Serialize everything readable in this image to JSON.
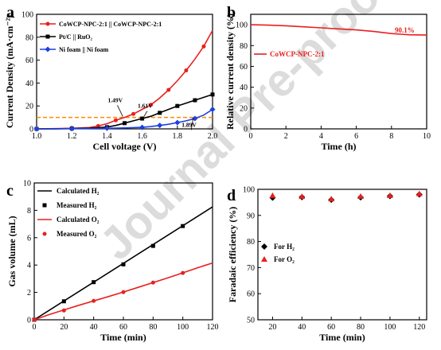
{
  "figure": {
    "watermark": "Journal Pre-proofs",
    "colors": {
      "red": "#e8201e",
      "black": "#000000",
      "blue": "#1f3fe0",
      "orange": "#ff8c00"
    }
  },
  "chart_data": [
    {
      "panel": "a",
      "type": "line",
      "xlabel": "Cell voltage (V)",
      "ylabel": "Current Density (mA·cm⁻²)",
      "xlim": [
        1.0,
        2.0
      ],
      "ylim": [
        0,
        100
      ],
      "xticks": [
        "1.0",
        "1.2",
        "1.4",
        "1.6",
        "1.8",
        "2.0"
      ],
      "yticks": [
        "0",
        "20",
        "40",
        "60",
        "80",
        "100"
      ],
      "series": [
        {
          "name": "CoWCP-NPC-2:1 || CoWCP-NPC-2:1",
          "color": "#e8201e",
          "marker": "circle",
          "x": [
            1.0,
            1.1,
            1.2,
            1.3,
            1.35,
            1.4,
            1.45,
            1.5,
            1.55,
            1.6,
            1.65,
            1.7,
            1.75,
            1.8,
            1.85,
            1.9,
            1.95,
            2.0
          ],
          "y": [
            0,
            0.2,
            0.5,
            1.2,
            2.5,
            4.5,
            7.5,
            10,
            13,
            17,
            21,
            27,
            34,
            42,
            51,
            61,
            72,
            86
          ]
        },
        {
          "name": "Pt/C || RuO₂",
          "color": "#000000",
          "marker": "square",
          "x": [
            1.0,
            1.1,
            1.2,
            1.3,
            1.4,
            1.45,
            1.5,
            1.55,
            1.6,
            1.65,
            1.7,
            1.75,
            1.8,
            1.85,
            1.9,
            1.95,
            2.0
          ],
          "y": [
            0,
            0.1,
            0.3,
            0.6,
            1.5,
            3,
            5,
            7,
            9,
            11,
            14,
            17,
            20,
            22.5,
            25,
            27.5,
            30
          ]
        },
        {
          "name": "Ni foam || Ni foam",
          "color": "#1f3fe0",
          "marker": "diamond",
          "x": [
            1.0,
            1.1,
            1.2,
            1.3,
            1.4,
            1.5,
            1.6,
            1.65,
            1.7,
            1.75,
            1.8,
            1.85,
            1.9,
            1.95,
            2.0
          ],
          "y": [
            0,
            0.1,
            0.2,
            0.3,
            0.5,
            0.8,
            1.3,
            2,
            3,
            4,
            5.5,
            7,
            9,
            12,
            17
          ]
        }
      ],
      "reference_line": {
        "y": 10,
        "color": "#ff8c00",
        "style": "dashed"
      },
      "annotations": [
        "1.49V",
        "1.61V",
        "1.89V"
      ]
    },
    {
      "panel": "b",
      "type": "line",
      "xlabel": "Time (h)",
      "ylabel": "Relative current density (%)",
      "xlim": [
        0,
        10
      ],
      "ylim": [
        0,
        110
      ],
      "xticks": [
        "0",
        "2",
        "4",
        "6",
        "8",
        "10"
      ],
      "yticks": [
        "0",
        "20",
        "40",
        "60",
        "80",
        "100"
      ],
      "series": [
        {
          "name": "CoWCP-NPC-2:1",
          "color": "#e8201e",
          "x": [
            0,
            1,
            2,
            3,
            4,
            5,
            6,
            7,
            8,
            9,
            10
          ],
          "y": [
            100,
            99.6,
            99,
            98,
            97,
            96,
            95,
            93.5,
            91.5,
            90.4,
            90.1
          ]
        }
      ],
      "annotations": [
        "90.1%"
      ]
    },
    {
      "panel": "c",
      "type": "line",
      "xlabel": "Time (min)",
      "ylabel": "Gas volume (mL)",
      "xlim": [
        0,
        120
      ],
      "ylim": [
        0,
        10
      ],
      "xticks": [
        "0",
        "20",
        "40",
        "60",
        "80",
        "100",
        "120"
      ],
      "yticks": [
        "0",
        "2",
        "4",
        "6",
        "8",
        "10"
      ],
      "series": [
        {
          "name": "Calculated H₂",
          "color": "#000000",
          "kind": "line",
          "x": [
            0,
            120
          ],
          "y": [
            0,
            8.25
          ]
        },
        {
          "name": "Measured H₂",
          "color": "#000000",
          "kind": "square",
          "x": [
            0,
            20,
            40,
            60,
            80,
            100
          ],
          "y": [
            0,
            1.35,
            2.75,
            4.05,
            5.4,
            6.85
          ]
        },
        {
          "name": "Calculated O₂",
          "color": "#e8201e",
          "kind": "line",
          "x": [
            0,
            10,
            20,
            30,
            40,
            50,
            60,
            70,
            80,
            90,
            100,
            110,
            120
          ],
          "y": [
            0,
            0.38,
            0.72,
            1.06,
            1.38,
            1.7,
            2.03,
            2.37,
            2.72,
            3.07,
            3.43,
            3.8,
            4.15
          ]
        },
        {
          "name": "Measured O₂",
          "color": "#e8201e",
          "kind": "circle",
          "x": [
            0,
            20,
            40,
            60,
            80,
            100
          ],
          "y": [
            0,
            0.68,
            1.38,
            2.02,
            2.72,
            3.42
          ]
        }
      ]
    },
    {
      "panel": "d",
      "type": "scatter",
      "xlabel": "Time (min)",
      "ylabel": "Faradaic efficiency (%)",
      "xlim": [
        10,
        125
      ],
      "ylim": [
        50,
        100
      ],
      "xticks": [
        "20",
        "40",
        "60",
        "80",
        "100",
        "120"
      ],
      "yticks": [
        "50",
        "60",
        "70",
        "80",
        "90",
        "100"
      ],
      "series": [
        {
          "name": "For H₂",
          "color": "#000000",
          "marker": "diamond",
          "x": [
            20,
            40,
            60,
            80,
            100,
            120
          ],
          "y": [
            96.8,
            97,
            96,
            96.9,
            97.4,
            98
          ]
        },
        {
          "name": "For O₂",
          "color": "#e8201e",
          "marker": "triangle",
          "x": [
            20,
            40,
            60,
            80,
            100,
            120
          ],
          "y": [
            97.6,
            97.2,
            96.3,
            97.3,
            97.6,
            98.3
          ]
        }
      ]
    }
  ]
}
